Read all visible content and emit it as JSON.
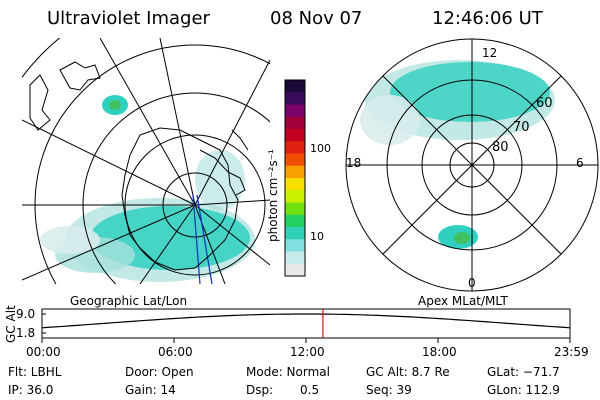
{
  "header": {
    "title": "Ultraviolet Imager",
    "date": "08 Nov 07",
    "time": "12:46:06 UT"
  },
  "left_panel": {
    "label": "Geographic Lat/Lon"
  },
  "right_panel": {
    "label": "Apex MLat/MLT",
    "lat_labels": [
      "60",
      "70",
      "80"
    ],
    "mlt_labels": {
      "top": "12",
      "bottom": "0",
      "left": "18",
      "right": "6"
    }
  },
  "colorbar": {
    "unit_label": "photon cm⁻²s⁻¹",
    "ticks": [
      "100",
      "10"
    ],
    "colors": [
      "#1a0a3a",
      "#3a0a5a",
      "#7a006a",
      "#a0003a",
      "#c40020",
      "#e02010",
      "#f05000",
      "#f8a000",
      "#f8e000",
      "#c8f000",
      "#70e010",
      "#20d060",
      "#30d0b8",
      "#80e0e0",
      "#c8ecec",
      "#e8e8e8"
    ]
  },
  "altitude_track": {
    "axis_label": "GC Alt",
    "y_ticks": [
      "9.0",
      "1.8"
    ],
    "x_ticks": [
      "00:00",
      "06:00",
      "12:00",
      "18:00",
      "23:59"
    ],
    "marker_color": "#d01010",
    "marker_time_hours": 12.77
  },
  "info": {
    "flt": "Flt: LBHL",
    "door": "Door: Open",
    "mode": "Mode: Normal",
    "gcalt": "GC Alt: 8.7 Re",
    "glat": "GLat: −71.7",
    "ip": "IP: 36.0",
    "gain": "Gain: 14",
    "dsp_label": "Dsp:",
    "dsp_value": "0.5",
    "seq": "Seq: 39",
    "glon": "GLon: 112.9"
  },
  "colors": {
    "aurora_cyan": "#30d0c0",
    "aurora_light": "#a8e0dc",
    "aurora_green": "#40c060",
    "grid": "#000000",
    "meridian_blue": "#1030c0"
  }
}
